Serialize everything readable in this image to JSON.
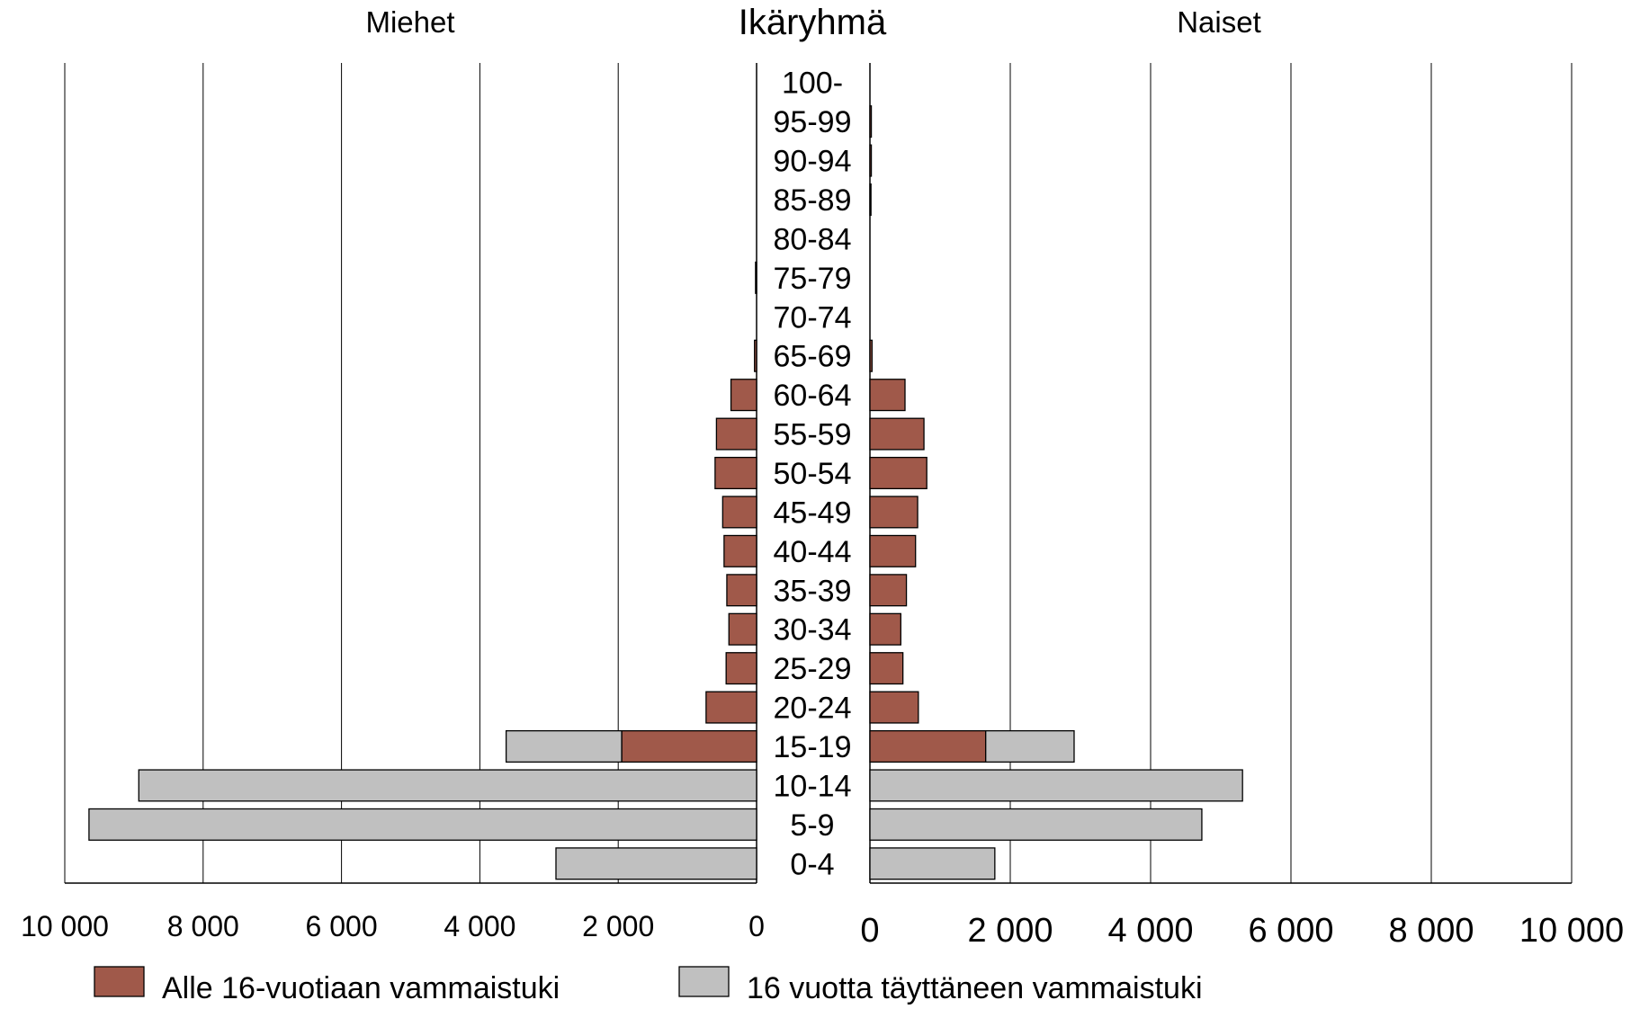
{
  "chart_data": {
    "type": "bar",
    "orientation": "horizontal",
    "layout": "population-pyramid",
    "title": "",
    "center_label": "Ikäryhmä",
    "left_panel_title": "Miehet",
    "right_panel_title": "Naiset",
    "categories": [
      "100-",
      "95-99",
      "90-94",
      "85-89",
      "80-84",
      "75-79",
      "70-74",
      "65-69",
      "60-64",
      "55-59",
      "50-54",
      "45-49",
      "40-44",
      "35-39",
      "30-34",
      "25-29",
      "20-24",
      "15-19",
      "10-14",
      "5-9",
      "0-4"
    ],
    "xlim": [
      0,
      10000
    ],
    "tick_values": [
      0,
      2000,
      4000,
      6000,
      8000,
      10000
    ],
    "tick_labels": [
      "0",
      "2 000",
      "4 000",
      "6 000",
      "8 000",
      "10 000"
    ],
    "grid": true,
    "legend_position": "bottom",
    "stacked": true,
    "series": [
      {
        "name": "Alle 16-vuotiaan vammaistuki",
        "color": "#a0594a",
        "men": [
          0,
          0,
          0,
          0,
          0,
          15,
          0,
          30,
          370,
          580,
          600,
          490,
          470,
          430,
          400,
          440,
          730,
          1950,
          0,
          0,
          0
        ],
        "women": [
          0,
          20,
          20,
          15,
          0,
          0,
          0,
          30,
          500,
          770,
          810,
          680,
          650,
          520,
          440,
          470,
          690,
          1650,
          0,
          0,
          0
        ]
      },
      {
        "name": "16 vuotta täyttäneen vammaistuki",
        "color": "#c0c0c0",
        "men": [
          0,
          0,
          0,
          0,
          0,
          0,
          0,
          0,
          0,
          0,
          0,
          0,
          0,
          0,
          0,
          0,
          0,
          1670,
          8930,
          9650,
          2900
        ],
        "women": [
          0,
          0,
          0,
          0,
          0,
          0,
          0,
          0,
          0,
          0,
          0,
          0,
          0,
          0,
          0,
          0,
          0,
          1260,
          5310,
          4730,
          1780
        ]
      }
    ]
  }
}
